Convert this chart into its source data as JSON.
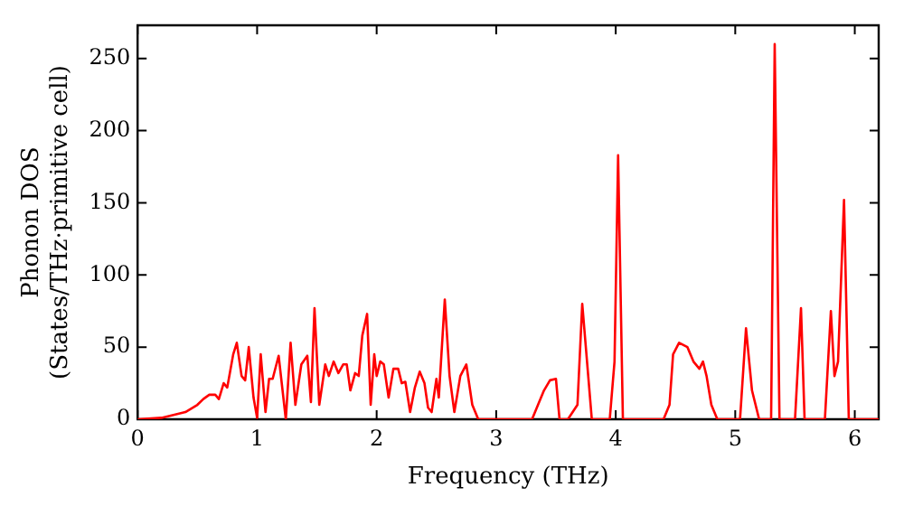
{
  "chart_data": {
    "type": "line",
    "xlabel": "Frequency (THz)",
    "ylabel": "Phonon DOS\n(States/THz·primitive cell)",
    "xlim": [
      0,
      6.2
    ],
    "xticks": [
      0,
      1,
      2,
      3,
      4,
      5,
      6
    ],
    "ylim": [
      0,
      273
    ],
    "yticks": [
      0,
      50,
      100,
      150,
      200,
      250
    ],
    "grid": false,
    "legend": false,
    "marker": "none",
    "line_style": "solid",
    "series": [
      {
        "color": "#ff0000",
        "x": [
          0,
          0.2,
          0.4,
          0.5,
          0.55,
          0.6,
          0.65,
          0.68,
          0.72,
          0.75,
          0.8,
          0.83,
          0.87,
          0.9,
          0.93,
          0.97,
          1.0,
          1.03,
          1.07,
          1.1,
          1.13,
          1.18,
          1.24,
          1.28,
          1.32,
          1.37,
          1.42,
          1.45,
          1.48,
          1.52,
          1.57,
          1.6,
          1.64,
          1.68,
          1.72,
          1.75,
          1.78,
          1.82,
          1.85,
          1.88,
          1.92,
          1.95,
          1.98,
          2.0,
          2.03,
          2.06,
          2.1,
          2.14,
          2.18,
          2.21,
          2.24,
          2.28,
          2.32,
          2.36,
          2.4,
          2.43,
          2.46,
          2.5,
          2.52,
          2.57,
          2.61,
          2.65,
          2.7,
          2.75,
          2.8,
          2.85,
          3.3,
          3.35,
          3.4,
          3.45,
          3.5,
          3.53,
          3.6,
          3.68,
          3.72,
          3.77,
          3.8,
          3.95,
          3.99,
          4.02,
          4.06,
          4.4,
          4.45,
          4.48,
          4.53,
          4.6,
          4.65,
          4.7,
          4.73,
          4.76,
          4.8,
          4.85,
          5.04,
          5.09,
          5.14,
          5.2,
          5.3,
          5.33,
          5.37,
          5.5,
          5.55,
          5.58,
          5.75,
          5.8,
          5.83,
          5.86,
          5.91,
          5.95,
          6.2
        ],
        "values": [
          0,
          1,
          5,
          10,
          14,
          17,
          17,
          14,
          25,
          22,
          45,
          53,
          30,
          27,
          50,
          15,
          1,
          45,
          5,
          28,
          28,
          44,
          0,
          53,
          10,
          38,
          44,
          12,
          77,
          10,
          38,
          30,
          40,
          32,
          38,
          38,
          20,
          32,
          30,
          58,
          73,
          10,
          45,
          30,
          40,
          38,
          15,
          35,
          35,
          25,
          26,
          5,
          22,
          33,
          25,
          8,
          5,
          28,
          15,
          83,
          30,
          5,
          30,
          38,
          10,
          0,
          0,
          10,
          20,
          27,
          28,
          0,
          0,
          10,
          80,
          30,
          0,
          0,
          40,
          183,
          0,
          0,
          10,
          45,
          53,
          50,
          40,
          35,
          40,
          30,
          10,
          0,
          0,
          63,
          20,
          0,
          0,
          260,
          0,
          0,
          77,
          0,
          0,
          75,
          30,
          40,
          152,
          0,
          0
        ]
      }
    ]
  }
}
